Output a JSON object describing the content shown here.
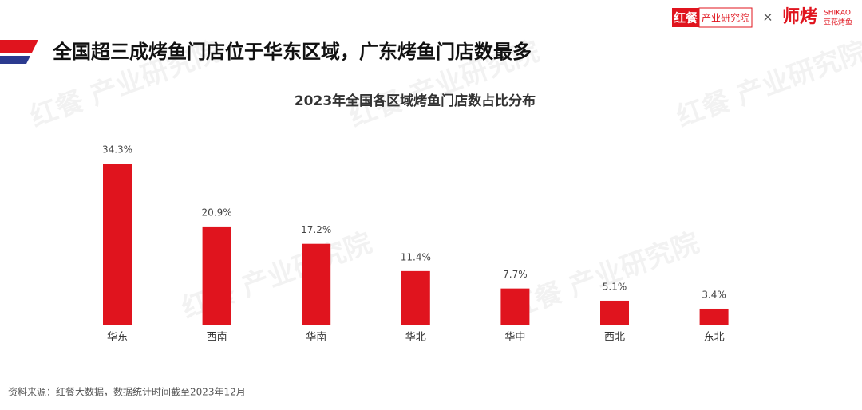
{
  "header": {
    "title": "全国超三成烤鱼门店位于华东区域，广东烤鱼门店数最多",
    "logo_left": "红餐",
    "logo_left_sub": "产业研究院",
    "logo_sep": "×",
    "logo_right": "师烤",
    "logo_right_en": "SHIKAO",
    "logo_right_sub": "豆花烤鱼"
  },
  "watermark": "红餐 产业研究院",
  "chart_data": {
    "type": "bar",
    "title": "2023年全国各区域烤鱼门店数占比分布",
    "categories": [
      "华东",
      "西南",
      "华南",
      "华北",
      "华中",
      "西北",
      "东北"
    ],
    "values": [
      34.3,
      20.9,
      17.2,
      11.4,
      7.7,
      5.1,
      3.4
    ],
    "value_labels": [
      "34.3%",
      "20.9%",
      "17.2%",
      "11.4%",
      "7.7%",
      "5.1%",
      "3.4%"
    ],
    "color": "#e0141e"
  },
  "footer": {
    "source": "资料来源：红餐大数据，数据统计时间截至2023年12月"
  }
}
